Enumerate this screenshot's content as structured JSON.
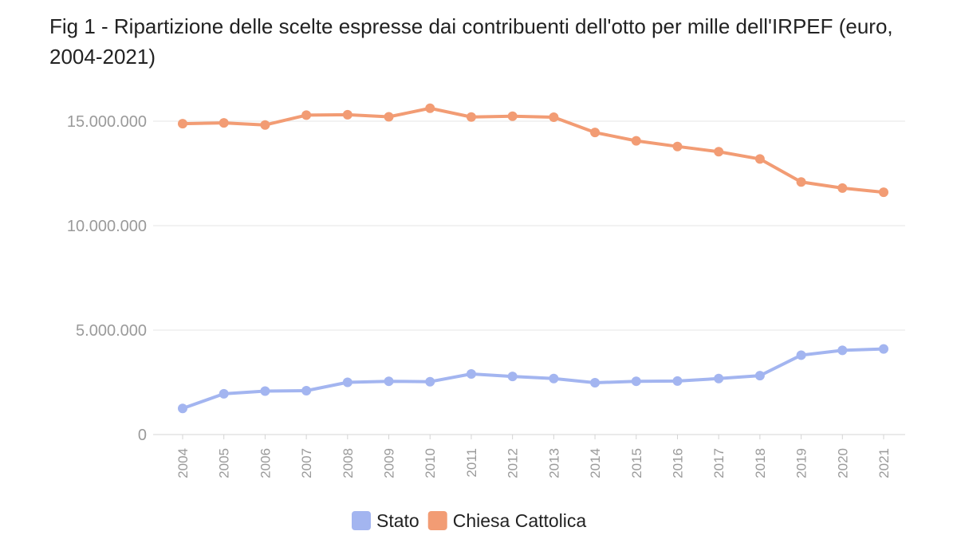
{
  "chart_data": {
    "type": "line",
    "title": "Fig 1 - Ripartizione delle scelte espresse dai contribuenti dell'otto per mille dell'IRPEF (euro, 2004-2021)",
    "xlabel": "",
    "ylabel": "",
    "x": [
      "2004",
      "2005",
      "2006",
      "2007",
      "2008",
      "2009",
      "2010",
      "2011",
      "2012",
      "2013",
      "2014",
      "2015",
      "2016",
      "2017",
      "2018",
      "2019",
      "2020",
      "2021"
    ],
    "ylim": [
      0,
      15000000
    ],
    "yticks": [
      0,
      5000000,
      10000000,
      15000000
    ],
    "ytick_labels": [
      "0",
      "5.000.000",
      "10.000.000",
      "15.000.000"
    ],
    "grid": true,
    "legend_position": "bottom",
    "series": [
      {
        "name": "Stato",
        "color": "#a3b5f0",
        "values": [
          1250000,
          1950000,
          2080000,
          2100000,
          2500000,
          2550000,
          2530000,
          2900000,
          2780000,
          2680000,
          2480000,
          2550000,
          2560000,
          2680000,
          2820000,
          3800000,
          4030000,
          4100000
        ]
      },
      {
        "name": "Chiesa Cattolica",
        "color": "#f29c74",
        "values": [
          14880000,
          14920000,
          14820000,
          15290000,
          15310000,
          15210000,
          15620000,
          15200000,
          15240000,
          15190000,
          14460000,
          14060000,
          13790000,
          13540000,
          13190000,
          12090000,
          11800000,
          11600000
        ]
      }
    ]
  }
}
